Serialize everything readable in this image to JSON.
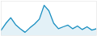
{
  "chart_data": {
    "type": "area",
    "x": [
      0,
      1,
      2,
      3,
      4,
      5,
      6,
      7,
      8,
      9,
      10,
      11,
      12,
      13,
      14,
      15,
      16,
      17,
      18,
      19,
      20
    ],
    "values": [
      5.0,
      7.5,
      9.5,
      7.0,
      5.5,
      4.2,
      5.8,
      7.2,
      9.0,
      14.0,
      12.0,
      7.5,
      5.5,
      6.2,
      6.8,
      5.5,
      6.5,
      5.2,
      6.2,
      5.0,
      5.5
    ],
    "color": "#1a8fc1",
    "xlim": [
      0,
      20
    ],
    "ylim": [
      3,
      15.5
    ],
    "grid": false,
    "tick_labels": false
  }
}
